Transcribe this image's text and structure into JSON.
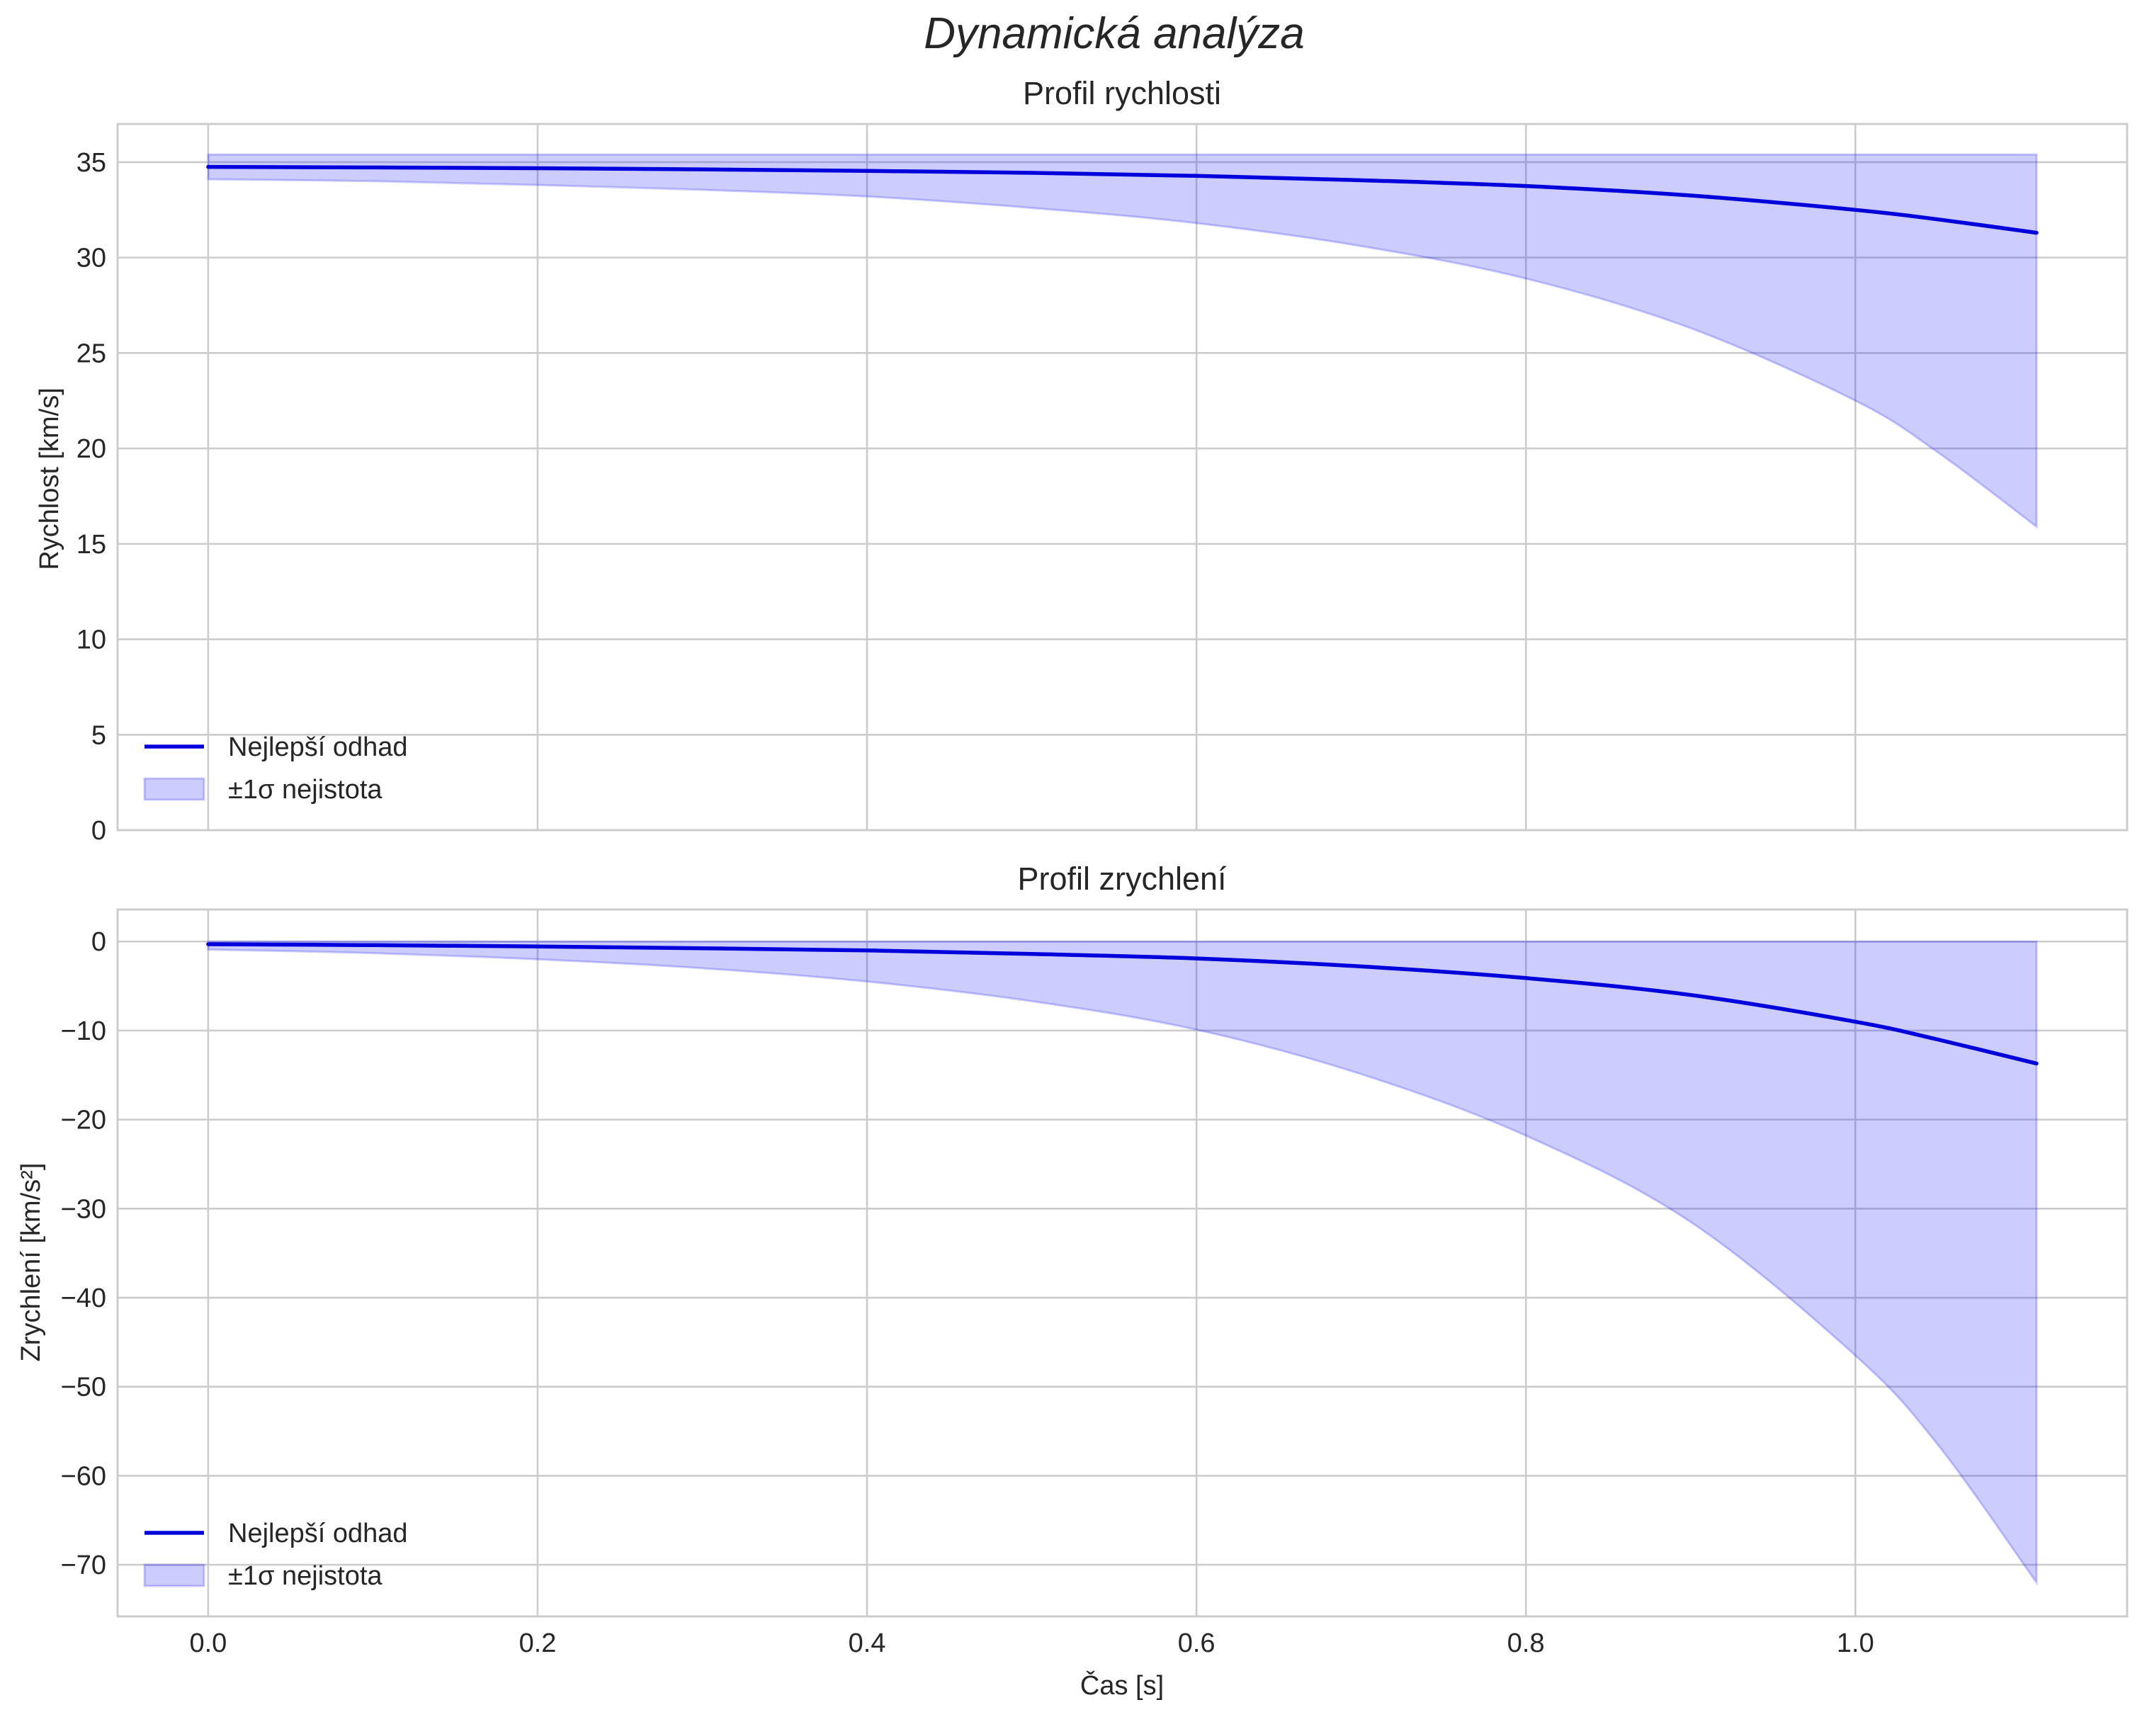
{
  "figure": {
    "suptitle": "Dynamická analýza",
    "xlabel": "Čas [s]",
    "colors": {
      "line": "#0000dd",
      "band": "#0000ff",
      "grid": "#cccccc",
      "text": "#262626"
    }
  },
  "chart_data": [
    {
      "type": "line",
      "title": "Profil rychlosti",
      "xlabel": "",
      "ylabel": "Rychlost [km/s]",
      "xlim": [
        -0.055,
        1.165
      ],
      "ylim": [
        0,
        37
      ],
      "xticks": [
        0.0,
        0.2,
        0.4,
        0.6,
        0.8,
        1.0
      ],
      "xtick_labels": [],
      "yticks": [
        0,
        5,
        10,
        15,
        20,
        25,
        30,
        35
      ],
      "ytick_labels": [
        "0",
        "5",
        "10",
        "15",
        "20",
        "25",
        "30",
        "35"
      ],
      "grid": true,
      "legend_position": "lower-left",
      "x": [
        0.0,
        0.1,
        0.2,
        0.3,
        0.4,
        0.5,
        0.6,
        0.7,
        0.8,
        0.9,
        1.0,
        1.05,
        1.11
      ],
      "series": [
        {
          "name": "Nejlepší odhad",
          "kind": "line",
          "values": [
            34.75,
            34.72,
            34.68,
            34.62,
            34.54,
            34.44,
            34.28,
            34.05,
            33.75,
            33.25,
            32.5,
            32.0,
            31.3
          ]
        }
      ],
      "band": {
        "name": "±1σ nejistota",
        "upper": [
          35.4,
          35.4,
          35.4,
          35.4,
          35.4,
          35.4,
          35.4,
          35.4,
          35.4,
          35.4,
          35.4,
          35.4,
          35.4
        ],
        "lower": [
          34.1,
          34.0,
          33.8,
          33.55,
          33.2,
          32.6,
          31.8,
          30.6,
          28.9,
          26.3,
          22.5,
          19.8,
          15.9
        ]
      }
    },
    {
      "type": "line",
      "title": "Profil zrychlení",
      "xlabel": "Čas [s]",
      "ylabel": "Zrychlení [km/s²]",
      "xlim": [
        -0.055,
        1.165
      ],
      "ylim": [
        -75.8,
        3.6
      ],
      "xticks": [
        0.0,
        0.2,
        0.4,
        0.6,
        0.8,
        1.0
      ],
      "xtick_labels": [
        "0.0",
        "0.2",
        "0.4",
        "0.6",
        "0.8",
        "1.0"
      ],
      "yticks": [
        0,
        -10,
        -20,
        -30,
        -40,
        -50,
        -60,
        -70
      ],
      "ytick_labels": [
        "0",
        "−10",
        "−20",
        "−30",
        "−40",
        "−50",
        "−60",
        "−70"
      ],
      "grid": true,
      "legend_position": "lower-left",
      "x": [
        0.0,
        0.1,
        0.2,
        0.3,
        0.4,
        0.5,
        0.6,
        0.7,
        0.8,
        0.9,
        1.0,
        1.05,
        1.11
      ],
      "series": [
        {
          "name": "Nejlepší odhad",
          "kind": "line",
          "values": [
            -0.3,
            -0.4,
            -0.55,
            -0.75,
            -1.0,
            -1.4,
            -1.9,
            -2.8,
            -4.1,
            -6.0,
            -9.0,
            -11.0,
            -13.7
          ]
        }
      ],
      "band": {
        "name": "±1σ nejistota",
        "upper": [
          0,
          0,
          0,
          0,
          0,
          0,
          0,
          0,
          0,
          0,
          0,
          0,
          0
        ],
        "lower": [
          -0.9,
          -1.3,
          -2.0,
          -3.0,
          -4.5,
          -6.7,
          -9.9,
          -14.9,
          -21.8,
          -31.5,
          -46.5,
          -56.5,
          -72.0
        ]
      }
    }
  ]
}
